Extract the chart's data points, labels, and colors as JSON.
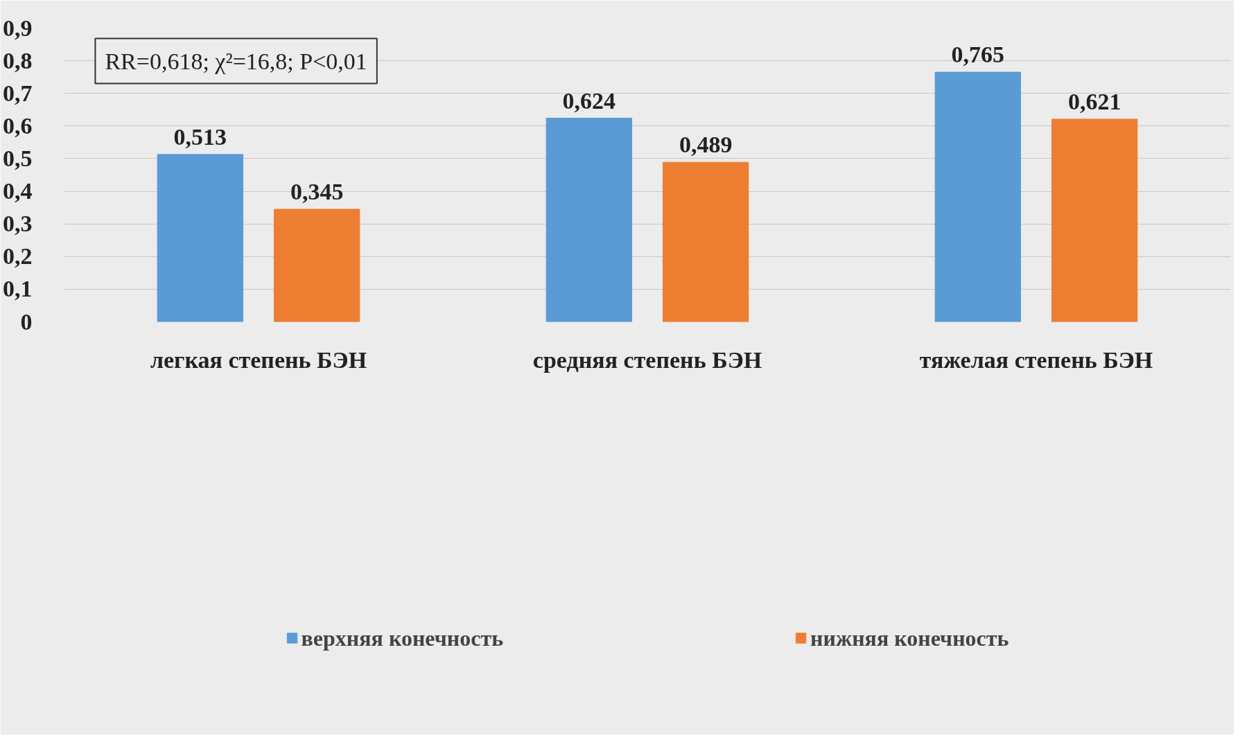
{
  "chart_data": {
    "type": "bar",
    "categories": [
      "легкая степень БЭН",
      "средняя степень БЭН",
      "тяжелая степень БЭН"
    ],
    "series": [
      {
        "name": "верхняя конечность",
        "color": "#5b9bd5",
        "values": [
          0.513,
          0.624,
          0.765
        ],
        "value_labels": [
          "0,513",
          "0,624",
          "0,765"
        ]
      },
      {
        "name": "нижняя конечность",
        "color": "#ed7d31",
        "values": [
          0.345,
          0.489,
          0.621
        ],
        "value_labels": [
          "0,345",
          "0,489",
          "0,621"
        ]
      }
    ],
    "ylim": [
      0,
      0.9
    ],
    "yticks": [
      {
        "value": 0,
        "label": "0"
      },
      {
        "value": 0.1,
        "label": "0,1"
      },
      {
        "value": 0.2,
        "label": "0,2"
      },
      {
        "value": 0.3,
        "label": "0,3"
      },
      {
        "value": 0.4,
        "label": "0,4"
      },
      {
        "value": 0.5,
        "label": "0,5"
      },
      {
        "value": 0.6,
        "label": "0,6"
      },
      {
        "value": 0.7,
        "label": "0,7"
      },
      {
        "value": 0.8,
        "label": "0,8"
      },
      {
        "value": 0.9,
        "label": "0,9"
      }
    ],
    "annotations": [
      "RR=0,618; χ²=16,8; P<0,01"
    ],
    "grid": "y",
    "legend": "bottom"
  }
}
